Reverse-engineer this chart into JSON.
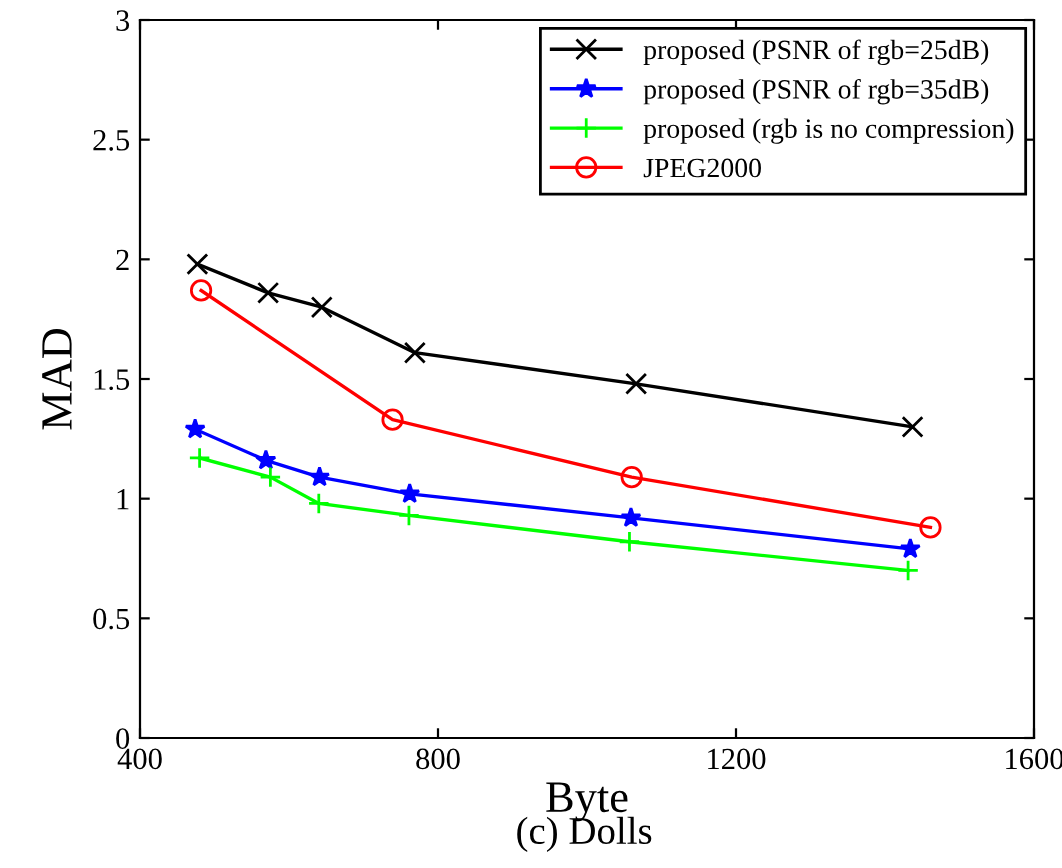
{
  "chart_data": {
    "type": "line",
    "xlabel": "Byte",
    "ylabel": "MAD",
    "annotations": [
      "(c) Dolls"
    ],
    "xlim": [
      400,
      1600
    ],
    "xticks": [
      400,
      800,
      1200,
      1600
    ],
    "ylim": [
      0,
      3
    ],
    "yticks": [
      0,
      0.5,
      1,
      1.5,
      2,
      2.5,
      3
    ],
    "grid": false,
    "legend": "top right",
    "line_style": "solid",
    "series": [
      {
        "name": "proposed (PSNR of rgb=25dB)",
        "color": "#000000",
        "marker": "cross",
        "x": [
          477,
          572,
          644,
          769,
          1066,
          1437
        ],
        "values": [
          1.98,
          1.86,
          1.8,
          1.61,
          1.48,
          1.3
        ]
      },
      {
        "name": "proposed (PSNR of rgb=35dB)",
        "color": "#0000ff",
        "marker": "star",
        "x": [
          474,
          569,
          641,
          762,
          1059,
          1434
        ],
        "values": [
          1.29,
          1.16,
          1.09,
          1.02,
          0.92,
          0.79
        ]
      },
      {
        "name": "proposed (rgb is no compression)",
        "color": "#00ff00",
        "marker": "plus",
        "x": [
          480,
          575,
          640,
          761,
          1057,
          1431
        ],
        "values": [
          1.17,
          1.09,
          0.98,
          0.93,
          0.82,
          0.7
        ]
      },
      {
        "name": "JPEG2000",
        "color": "#ff0000",
        "marker": "circle",
        "x": [
          482,
          739,
          1060,
          1461
        ],
        "values": [
          1.87,
          1.33,
          1.09,
          0.88
        ]
      }
    ]
  }
}
